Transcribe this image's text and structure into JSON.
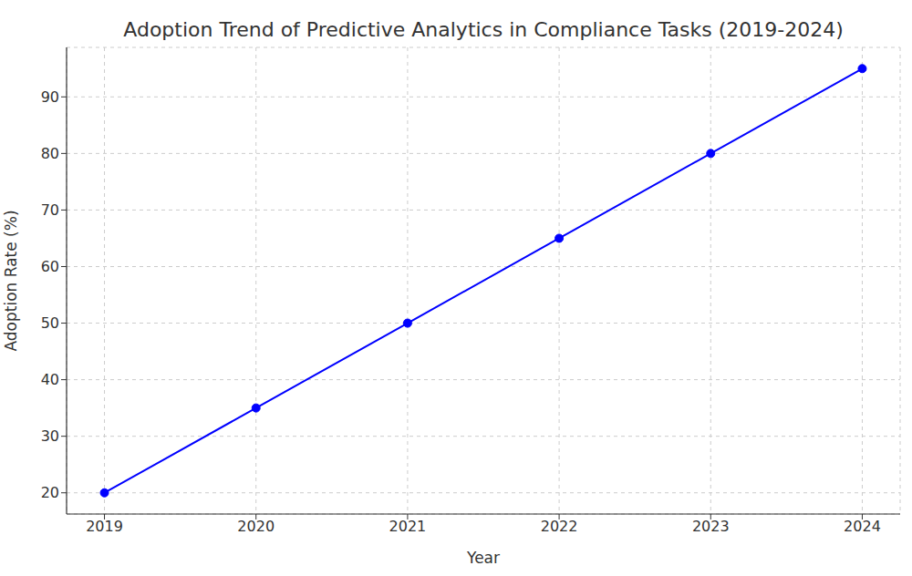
{
  "chart_data": {
    "type": "line",
    "title": "Adoption Trend of Predictive Analytics in Compliance Tasks (2019-2024)",
    "x_label": "Year",
    "y_label": "Adoption Rate (%)",
    "x": [
      2019,
      2020,
      2021,
      2022,
      2023,
      2024
    ],
    "values": [
      20,
      35,
      50,
      65,
      80,
      95
    ],
    "color": "#0000ff",
    "marker": "o",
    "line_style": "solid",
    "xlim": [
      2018.75,
      2024.25
    ],
    "xticks": [
      2019,
      2020,
      2021,
      2022,
      2023,
      2024
    ],
    "ylim": [
      16.25,
      98.75
    ],
    "yticks": [
      20,
      30,
      40,
      50,
      60,
      70,
      80,
      90
    ],
    "grid": true
  }
}
